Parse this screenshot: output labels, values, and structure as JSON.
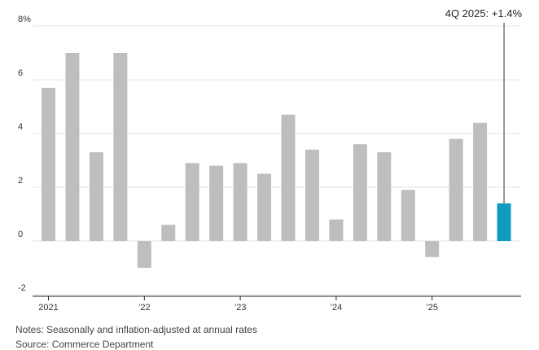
{
  "chart_data": {
    "type": "bar",
    "categories": [
      "1Q 2021",
      "2Q 2021",
      "3Q 2021",
      "4Q 2021",
      "1Q 2022",
      "2Q 2022",
      "3Q 2022",
      "4Q 2022",
      "1Q 2023",
      "2Q 2023",
      "3Q 2023",
      "4Q 2023",
      "1Q 2024",
      "2Q 2024",
      "3Q 2024",
      "4Q 2024",
      "1Q 2025",
      "2Q 2025",
      "3Q 2025",
      "4Q 2025"
    ],
    "values": [
      5.7,
      7.0,
      3.3,
      7.0,
      -1.0,
      0.6,
      2.9,
      2.8,
      2.9,
      2.5,
      4.7,
      3.4,
      0.8,
      3.6,
      3.3,
      1.9,
      -0.6,
      3.8,
      4.4,
      1.4
    ],
    "ylim": [
      -2,
      8
    ],
    "y_ticks": [
      {
        "value": 8,
        "label": "8%"
      },
      {
        "value": 6,
        "label": "6"
      },
      {
        "value": 4,
        "label": "4"
      },
      {
        "value": 2,
        "label": "2"
      },
      {
        "value": 0,
        "label": "0"
      },
      {
        "value": -2,
        "label": "-2"
      }
    ],
    "x_ticks": [
      {
        "index": 0,
        "label": "2021"
      },
      {
        "index": 4,
        "label": "’22"
      },
      {
        "index": 8,
        "label": "’23"
      },
      {
        "index": 12,
        "label": "’24"
      },
      {
        "index": 16,
        "label": "’25"
      }
    ],
    "grid": true,
    "colors": {
      "default": "#bebebe",
      "highlight": "#0f9bbf"
    },
    "highlight_index": 19,
    "annotation": {
      "index": 19,
      "label": "4Q 2025: +1.4%"
    }
  },
  "notes": "Notes: Seasonally and inflation-adjusted at annual rates",
  "source": "Source: Commerce Department"
}
